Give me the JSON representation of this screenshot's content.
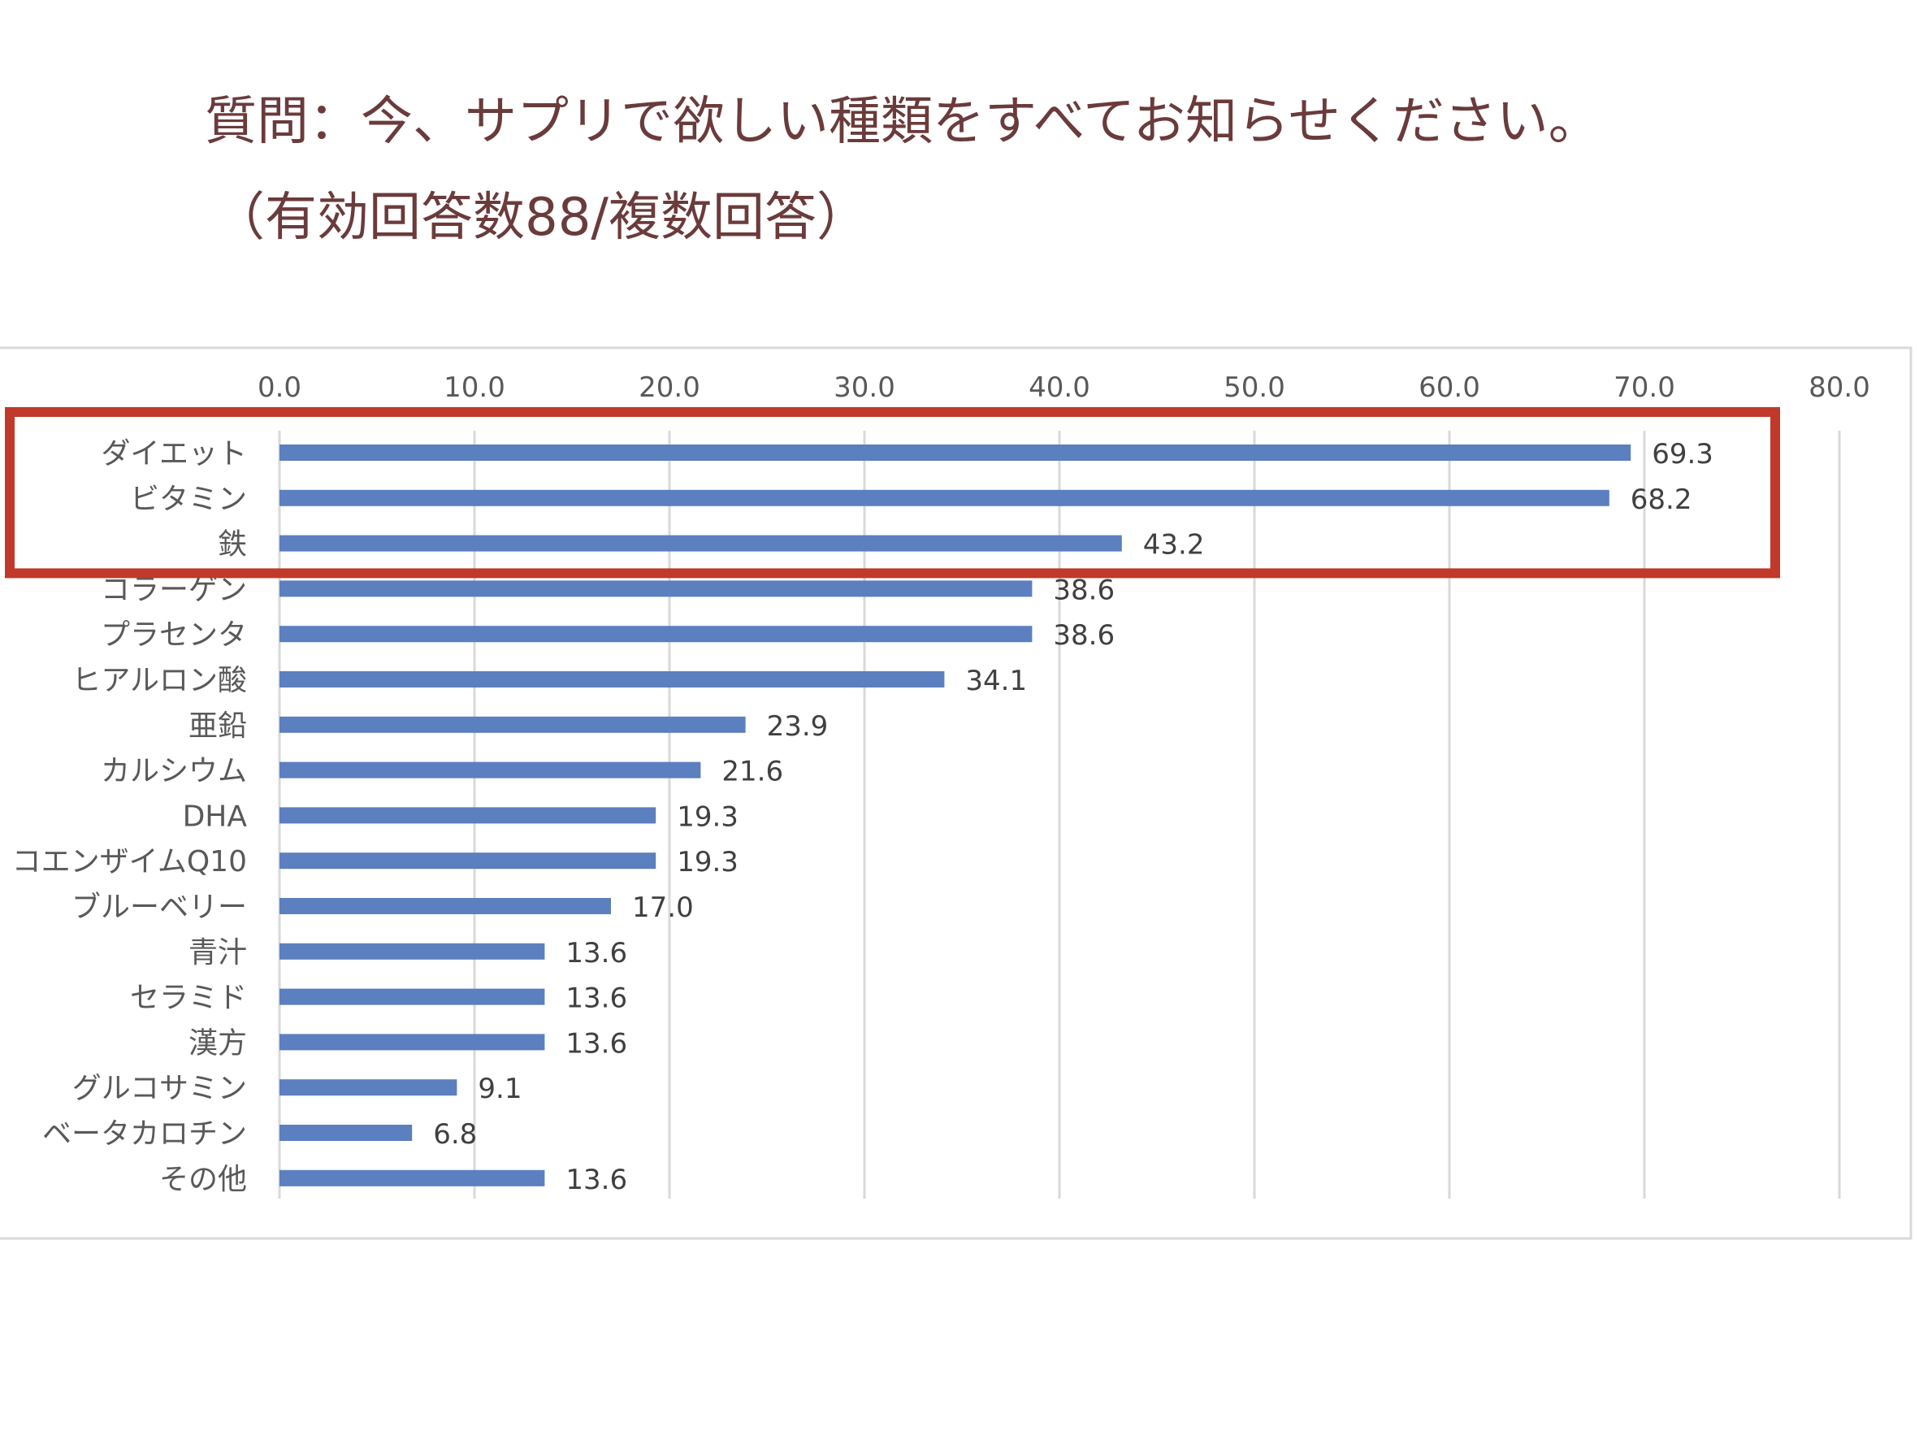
{
  "header": {
    "title": "質問：今、サプリで欲しい種類をすべてお知らせください。",
    "subtitle": "（有効回答数88/複数回答）"
  },
  "colors": {
    "bar": "#5b7fbf",
    "highlight": "#c0392b",
    "grid": "#d9d9d9",
    "frame": "#d9d9d9",
    "title": "#6b3b3b"
  },
  "chart_data": {
    "type": "bar",
    "orientation": "horizontal",
    "title": "",
    "xlabel": "",
    "ylabel": "",
    "xlim": [
      0,
      80
    ],
    "ticks": [
      "0.0",
      "10.0",
      "20.0",
      "30.0",
      "40.0",
      "50.0",
      "60.0",
      "70.0",
      "80.0"
    ],
    "tick_values": [
      0,
      10,
      20,
      30,
      40,
      50,
      60,
      70,
      80
    ],
    "grid": true,
    "legend": "none",
    "categories": [
      "ダイエット",
      "ビタミン",
      "鉄",
      "コラーゲン",
      "プラセンタ",
      "ヒアルロン酸",
      "亜鉛",
      "カルシウム",
      "DHA",
      "コエンザイムQ10",
      "ブルーベリー",
      "青汁",
      "セラミド",
      "漢方",
      "グルコサミン",
      "ベータカロチン",
      "その他"
    ],
    "values": [
      69.3,
      68.2,
      43.2,
      38.6,
      38.6,
      34.1,
      23.9,
      21.6,
      19.3,
      19.3,
      17.0,
      13.6,
      13.6,
      13.6,
      9.1,
      6.8,
      13.6
    ],
    "value_labels": [
      "69.3",
      "68.2",
      "43.2",
      "38.6",
      "38.6",
      "34.1",
      "23.9",
      "21.6",
      "19.3",
      "19.3",
      "17.0",
      "13.6",
      "13.6",
      "13.6",
      "9.1",
      "6.8",
      "13.6"
    ],
    "highlight_categories": [
      "ダイエット",
      "ビタミン",
      "鉄"
    ]
  }
}
